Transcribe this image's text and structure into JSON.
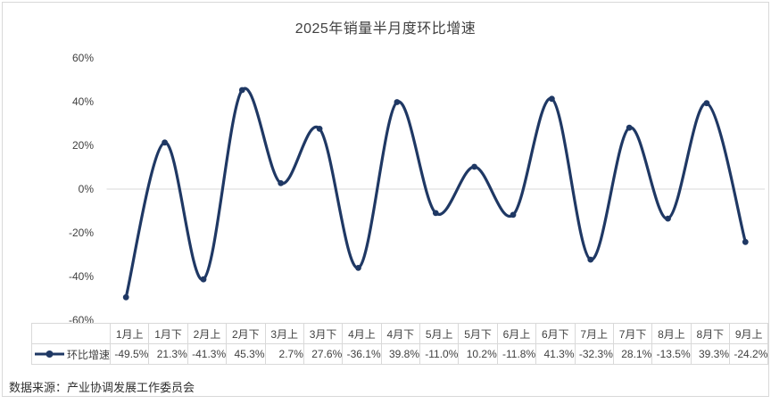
{
  "chart_data": {
    "type": "line",
    "title": "2025年销量半月度环比增速",
    "series": [
      {
        "name": "环比增速",
        "values": [
          -49.5,
          21.3,
          -41.3,
          45.3,
          2.7,
          27.6,
          -36.1,
          39.8,
          -11.0,
          10.2,
          -11.8,
          41.3,
          -32.3,
          28.1,
          -13.5,
          39.3,
          -24.2
        ],
        "value_labels": [
          "-49.5%",
          "21.3%",
          "-41.3%",
          "45.3%",
          "2.7%",
          "27.6%",
          "-36.1%",
          "39.8%",
          "-11.0%",
          "10.2%",
          "-11.8%",
          "41.3%",
          "-32.3%",
          "28.1%",
          "-13.5%",
          "39.3%",
          "-24.2%"
        ]
      }
    ],
    "categories": [
      "1月上",
      "1月下",
      "2月上",
      "2月下",
      "3月上",
      "3月下",
      "4月上",
      "4月下",
      "5月上",
      "5月下",
      "6月上",
      "6月下",
      "7月上",
      "7月下",
      "8月上",
      "8月下",
      "9月上"
    ],
    "y_ticks": [
      {
        "label": "60%",
        "value": 60
      },
      {
        "label": "40%",
        "value": 40
      },
      {
        "label": "20%",
        "value": 20
      },
      {
        "label": "0%",
        "value": 0
      },
      {
        "label": "-20%",
        "value": -20
      },
      {
        "label": "-40%",
        "value": -40
      },
      {
        "label": "-60%",
        "value": -60
      }
    ],
    "ylim": [
      -60,
      60
    ],
    "smooth": true,
    "grid": "zero-line-only",
    "legend_position": "data-table-left",
    "line_color": "#1F3864",
    "grid_color": "#D9D9D9"
  },
  "source": {
    "label": "数据来源：产业协调发展工作委员会"
  }
}
